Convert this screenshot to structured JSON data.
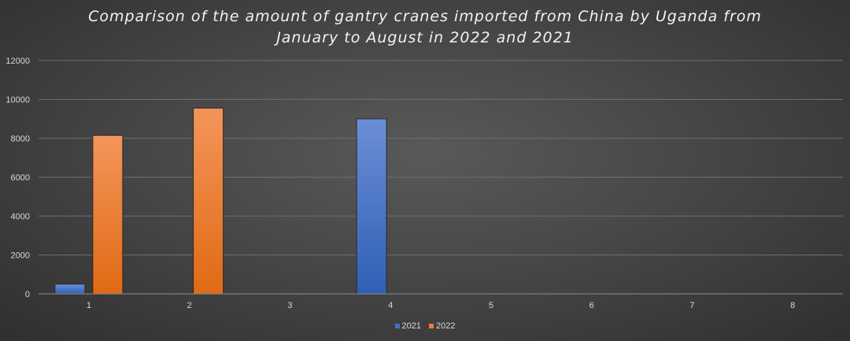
{
  "chart_data": {
    "type": "bar",
    "title_lines": [
      "Comparison of the amount of gantry cranes imported from China by Uganda from",
      "January to August in 2022 and 2021"
    ],
    "categories": [
      "1",
      "2",
      "3",
      "4",
      "5",
      "6",
      "7",
      "8"
    ],
    "series": [
      {
        "name": "2021",
        "color": "#4472c4",
        "values": [
          500,
          0,
          0,
          9000,
          0,
          0,
          0,
          0
        ]
      },
      {
        "name": "2022",
        "color": "#ed7d31",
        "values": [
          8150,
          9550,
          0,
          0,
          0,
          0,
          0,
          0
        ]
      }
    ],
    "ylim": [
      0,
      12000
    ],
    "yticks": [
      0,
      2000,
      4000,
      6000,
      8000,
      10000,
      12000
    ],
    "grid": true,
    "legend_position": "bottom"
  }
}
